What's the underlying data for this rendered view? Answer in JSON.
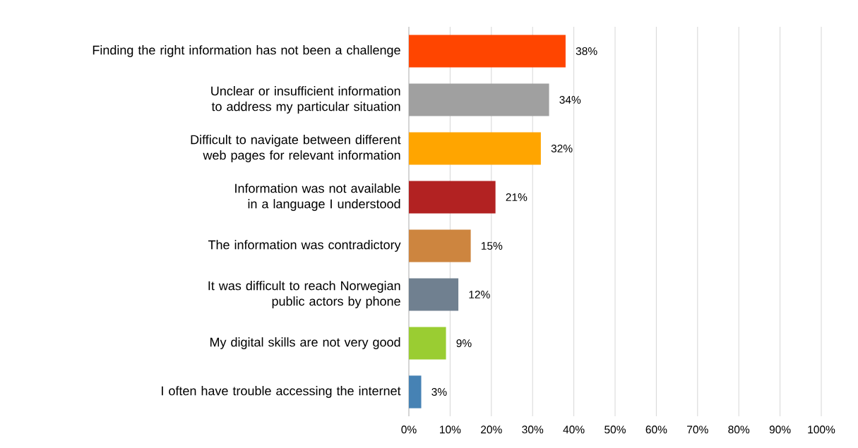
{
  "chart_data": {
    "type": "bar",
    "orientation": "horizontal",
    "categories": [
      "Finding the right information has not been a challenge",
      "Unclear or insufficient information to address my particular situation",
      "Difficult to navigate between different web pages for relevant information",
      "Information was not available in a language I understood",
      "The information was contradictory",
      "It was difficult to reach Norwegian public actors by phone",
      "My digital skills are not very good",
      "I often have trouble accessing the internet"
    ],
    "values": [
      38,
      34,
      32,
      21,
      15,
      12,
      9,
      3
    ],
    "value_labels": [
      "38%",
      "34%",
      "32%",
      "21%",
      "15%",
      "12%",
      "9%",
      "3%"
    ],
    "colors": [
      "#ff4500",
      "#a0a0a0",
      "#ffa500",
      "#b22222",
      "#cd853f",
      "#708090",
      "#9acd32",
      "#4682b4"
    ],
    "xlim": [
      0,
      100
    ],
    "xticks": [
      {
        "value": 0,
        "label": "0%"
      },
      {
        "value": 10,
        "label": "10%"
      },
      {
        "value": 20,
        "label": "20%"
      },
      {
        "value": 30,
        "label": "30%"
      },
      {
        "value": 40,
        "label": "40%"
      },
      {
        "value": 50,
        "label": "50%"
      },
      {
        "value": 60,
        "label": "60%"
      },
      {
        "value": 70,
        "label": "70%"
      },
      {
        "value": 80,
        "label": "80%"
      },
      {
        "value": 90,
        "label": "90%"
      },
      {
        "value": 100,
        "label": "100%"
      }
    ],
    "grid": "x"
  }
}
